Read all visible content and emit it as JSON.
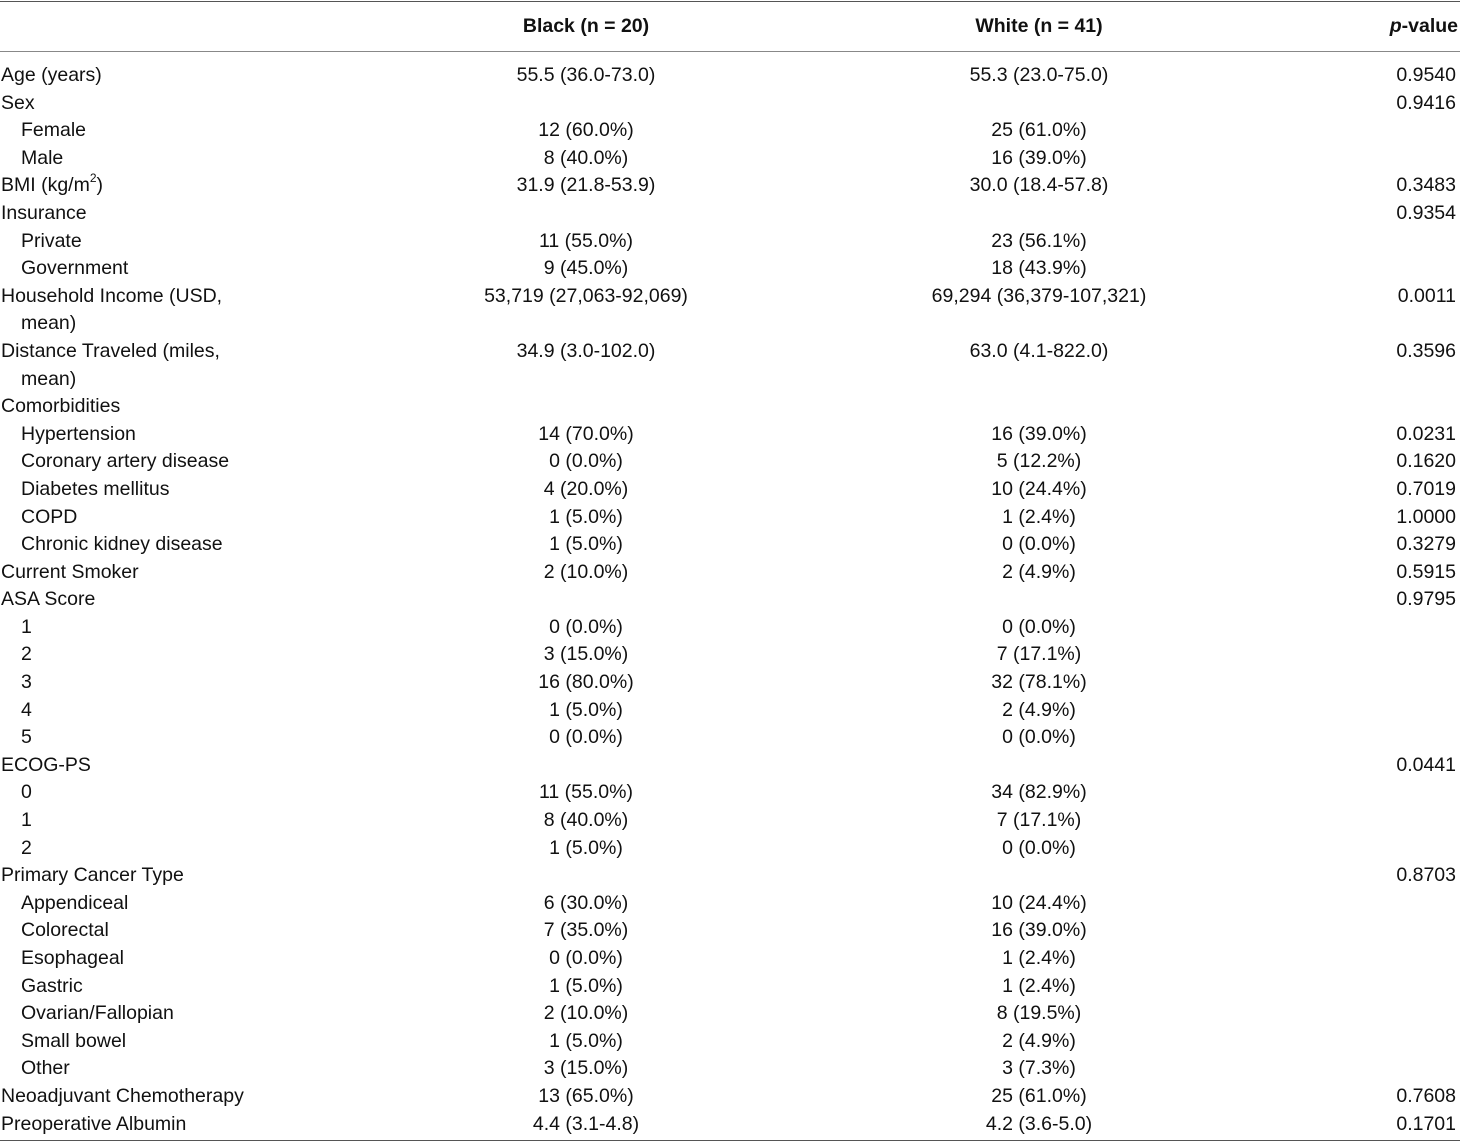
{
  "header": {
    "col_black": "Black (n = 20)",
    "col_white": "White (n = 41)",
    "col_p_italic": "p",
    "col_p_rest": "-value"
  },
  "rows": [
    {
      "label": "Age (years)",
      "indent": false,
      "black": "55.5 (36.0-73.0)",
      "white": "55.3 (23.0-75.0)",
      "p": "0.9540"
    },
    {
      "label": "Sex",
      "indent": false,
      "black": "",
      "white": "",
      "p": "0.9416"
    },
    {
      "label": "Female",
      "indent": true,
      "black": "12 (60.0%)",
      "white": "25 (61.0%)",
      "p": ""
    },
    {
      "label": "Male",
      "indent": true,
      "black": "8 (40.0%)",
      "white": "16 (39.0%)",
      "p": ""
    },
    {
      "label": "BMI (kg/m",
      "label_sup": "2",
      "label_after": ")",
      "indent": false,
      "black": "31.9 (21.8-53.9)",
      "white": "30.0 (18.4-57.8)",
      "p": "0.3483"
    },
    {
      "label": "Insurance",
      "indent": false,
      "black": "",
      "white": "",
      "p": "0.9354"
    },
    {
      "label": "Private",
      "indent": true,
      "black": "11 (55.0%)",
      "white": "23 (56.1%)",
      "p": ""
    },
    {
      "label": "Government",
      "indent": true,
      "black": "9 (45.0%)",
      "white": "18 (43.9%)",
      "p": ""
    },
    {
      "label": "Household Income (USD,",
      "label_cont": "mean)",
      "indent": false,
      "black": "53,719 (27,063-92,069)",
      "white": "69,294 (36,379-107,321)",
      "p": "0.0011"
    },
    {
      "label": "Distance Traveled (miles,",
      "label_cont": "mean)",
      "indent": false,
      "black": "34.9 (3.0-102.0)",
      "white": "63.0 (4.1-822.0)",
      "p": "0.3596"
    },
    {
      "label": "Comorbidities",
      "indent": false,
      "black": "",
      "white": "",
      "p": ""
    },
    {
      "label": "Hypertension",
      "indent": true,
      "black": "14 (70.0%)",
      "white": "16 (39.0%)",
      "p": "0.0231"
    },
    {
      "label": "Coronary artery disease",
      "indent": true,
      "black": "0 (0.0%)",
      "white": "5 (12.2%)",
      "p": "0.1620"
    },
    {
      "label": "Diabetes mellitus",
      "indent": true,
      "black": "4 (20.0%)",
      "white": "10 (24.4%)",
      "p": "0.7019"
    },
    {
      "label": "COPD",
      "indent": true,
      "black": "1 (5.0%)",
      "white": "1 (2.4%)",
      "p": "1.0000"
    },
    {
      "label": "Chronic kidney disease",
      "indent": true,
      "black": "1 (5.0%)",
      "white": "0 (0.0%)",
      "p": "0.3279"
    },
    {
      "label": "Current Smoker",
      "indent": false,
      "black": "2 (10.0%)",
      "white": "2 (4.9%)",
      "p": "0.5915"
    },
    {
      "label": "ASA Score",
      "indent": false,
      "black": "",
      "white": "",
      "p": "0.9795"
    },
    {
      "label": "1",
      "indent": true,
      "black": "0 (0.0%)",
      "white": "0 (0.0%)",
      "p": ""
    },
    {
      "label": "2",
      "indent": true,
      "black": "3 (15.0%)",
      "white": "7 (17.1%)",
      "p": ""
    },
    {
      "label": "3",
      "indent": true,
      "black": "16 (80.0%)",
      "white": "32 (78.1%)",
      "p": ""
    },
    {
      "label": "4",
      "indent": true,
      "black": "1 (5.0%)",
      "white": "2 (4.9%)",
      "p": ""
    },
    {
      "label": "5",
      "indent": true,
      "black": "0 (0.0%)",
      "white": "0 (0.0%)",
      "p": ""
    },
    {
      "label": "ECOG-PS",
      "indent": false,
      "black": "",
      "white": "",
      "p": "0.0441"
    },
    {
      "label": "0",
      "indent": true,
      "black": "11 (55.0%)",
      "white": "34 (82.9%)",
      "p": ""
    },
    {
      "label": "1",
      "indent": true,
      "black": "8 (40.0%)",
      "white": "7 (17.1%)",
      "p": ""
    },
    {
      "label": "2",
      "indent": true,
      "black": "1 (5.0%)",
      "white": "0 (0.0%)",
      "p": ""
    },
    {
      "label": "Primary Cancer Type",
      "indent": false,
      "black": "",
      "white": "",
      "p": "0.8703"
    },
    {
      "label": "Appendiceal",
      "indent": true,
      "black": "6 (30.0%)",
      "white": "10 (24.4%)",
      "p": ""
    },
    {
      "label": "Colorectal",
      "indent": true,
      "black": "7 (35.0%)",
      "white": "16 (39.0%)",
      "p": ""
    },
    {
      "label": "Esophageal",
      "indent": true,
      "black": "0 (0.0%)",
      "white": "1 (2.4%)",
      "p": ""
    },
    {
      "label": "Gastric",
      "indent": true,
      "black": "1 (5.0%)",
      "white": "1 (2.4%)",
      "p": ""
    },
    {
      "label": "Ovarian/Fallopian",
      "indent": true,
      "black": "2 (10.0%)",
      "white": "8 (19.5%)",
      "p": ""
    },
    {
      "label": "Small bowel",
      "indent": true,
      "black": "1 (5.0%)",
      "white": "2 (4.9%)",
      "p": ""
    },
    {
      "label": "Other",
      "indent": true,
      "black": "3 (15.0%)",
      "white": "3 (7.3%)",
      "p": ""
    },
    {
      "label": "Neoadjuvant Chemotherapy",
      "indent": false,
      "black": "13 (65.0%)",
      "white": "25 (61.0%)",
      "p": "0.7608"
    },
    {
      "label": "Preoperative Albumin",
      "indent": false,
      "black": "4.4 (3.1-4.8)",
      "white": "4.2 (3.6-5.0)",
      "p": "0.1701"
    }
  ]
}
